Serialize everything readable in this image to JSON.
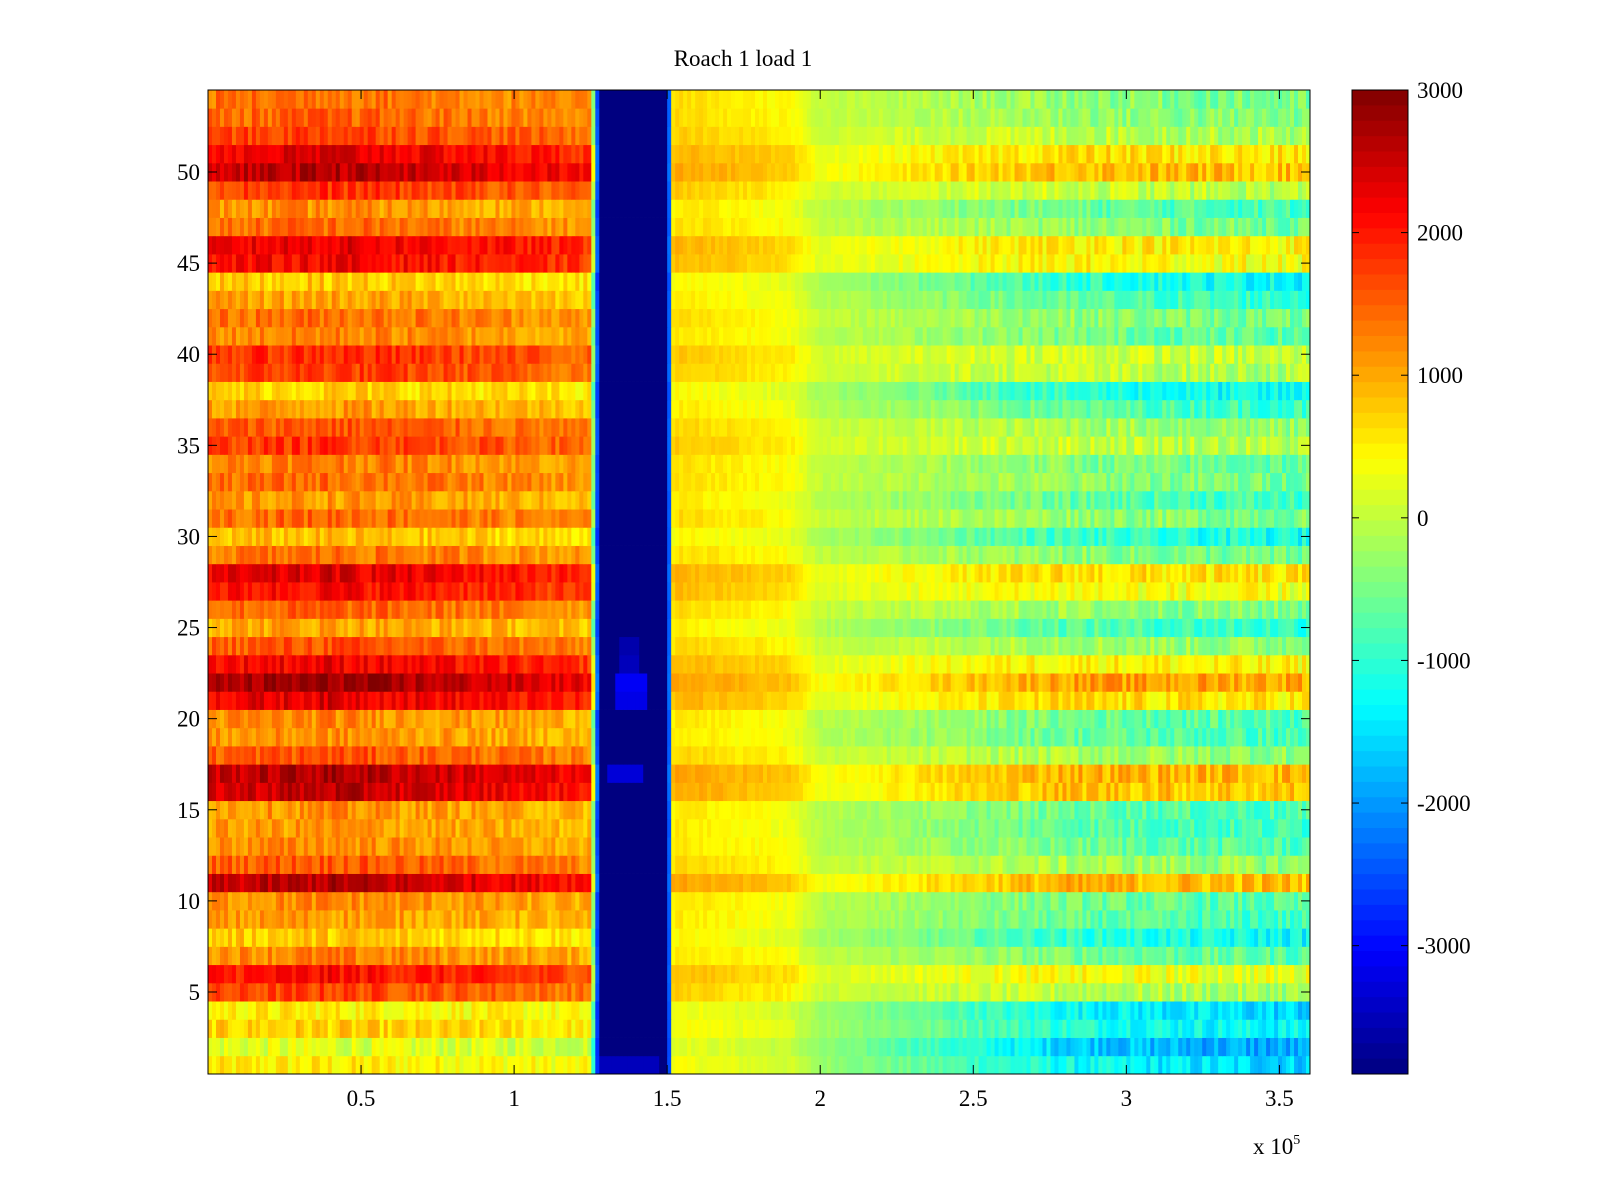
{
  "chart_data": {
    "type": "heatmap",
    "title": "Roach 1 load 1",
    "xlabel": "",
    "ylabel": "",
    "colormap": "jet",
    "xlim": [
      0,
      360000
    ],
    "ylim": [
      0.5,
      54.5
    ],
    "x_ticks": [
      50000,
      100000,
      150000,
      200000,
      250000,
      300000,
      350000
    ],
    "x_tick_labels": [
      "0.5",
      "1",
      "1.5",
      "2",
      "2.5",
      "3",
      "3.5"
    ],
    "x_exponent_base": "x 10",
    "x_exponent_power": "5",
    "y_ticks": [
      5,
      10,
      15,
      20,
      25,
      30,
      35,
      40,
      45,
      50
    ],
    "y_tick_labels": [
      "5",
      "10",
      "15",
      "20",
      "25",
      "30",
      "35",
      "40",
      "45",
      "50"
    ],
    "color_range": [
      -3900,
      3000
    ],
    "colorbar_ticks": [
      3000,
      2000,
      1000,
      0,
      -1000,
      -2000,
      -3000
    ],
    "colorbar_tick_labels": [
      "3000",
      "2000",
      "1000",
      "0",
      "-1000",
      "-2000",
      "-3000"
    ],
    "rows": 54,
    "x_profile": {
      "x": [
        0,
        40000,
        80000,
        125000,
        128000,
        150000,
        152000,
        190000,
        200000,
        240000,
        280000,
        320000,
        360000
      ],
      "base": [
        900,
        950,
        850,
        700,
        -3900,
        -3900,
        500,
        250,
        -150,
        -450,
        -800,
        -1000,
        -1100
      ],
      "amplitude": [
        1.0,
        1.1,
        1.0,
        0.9,
        0.0,
        0.0,
        0.35,
        0.35,
        0.3,
        0.7,
        1.1,
        1.2,
        1.25
      ]
    },
    "row_offsets": [
      -400,
      -700,
      -200,
      -400,
      700,
      1050,
      300,
      -150,
      150,
      250,
      1550,
      600,
      250,
      150,
      200,
      1500,
      1600,
      600,
      200,
      250,
      1300,
      1700,
      1200,
      600,
      100,
      500,
      1100,
      1300,
      400,
      -100,
      500,
      150,
      450,
      350,
      800,
      600,
      150,
      -200,
      750,
      850,
      300,
      450,
      100,
      -150,
      1150,
      1250,
      450,
      200,
      800,
      1550,
      1300,
      750,
      500,
      450
    ],
    "gap_blips": [
      {
        "row": 17,
        "x_range": [
          130000,
          142000
        ],
        "value": -3300
      },
      {
        "row": 21,
        "x_range": [
          133000,
          143000
        ],
        "value": -3200
      },
      {
        "row": 22,
        "x_range": [
          133000,
          143000
        ],
        "value": -3100
      },
      {
        "row": 23,
        "x_range": [
          135000,
          141000
        ],
        "value": -3500
      },
      {
        "row": 24,
        "x_range": [
          135000,
          141000
        ],
        "value": -3600
      },
      {
        "row": 1,
        "x_range": [
          128000,
          148000
        ],
        "value": -3500
      }
    ]
  }
}
